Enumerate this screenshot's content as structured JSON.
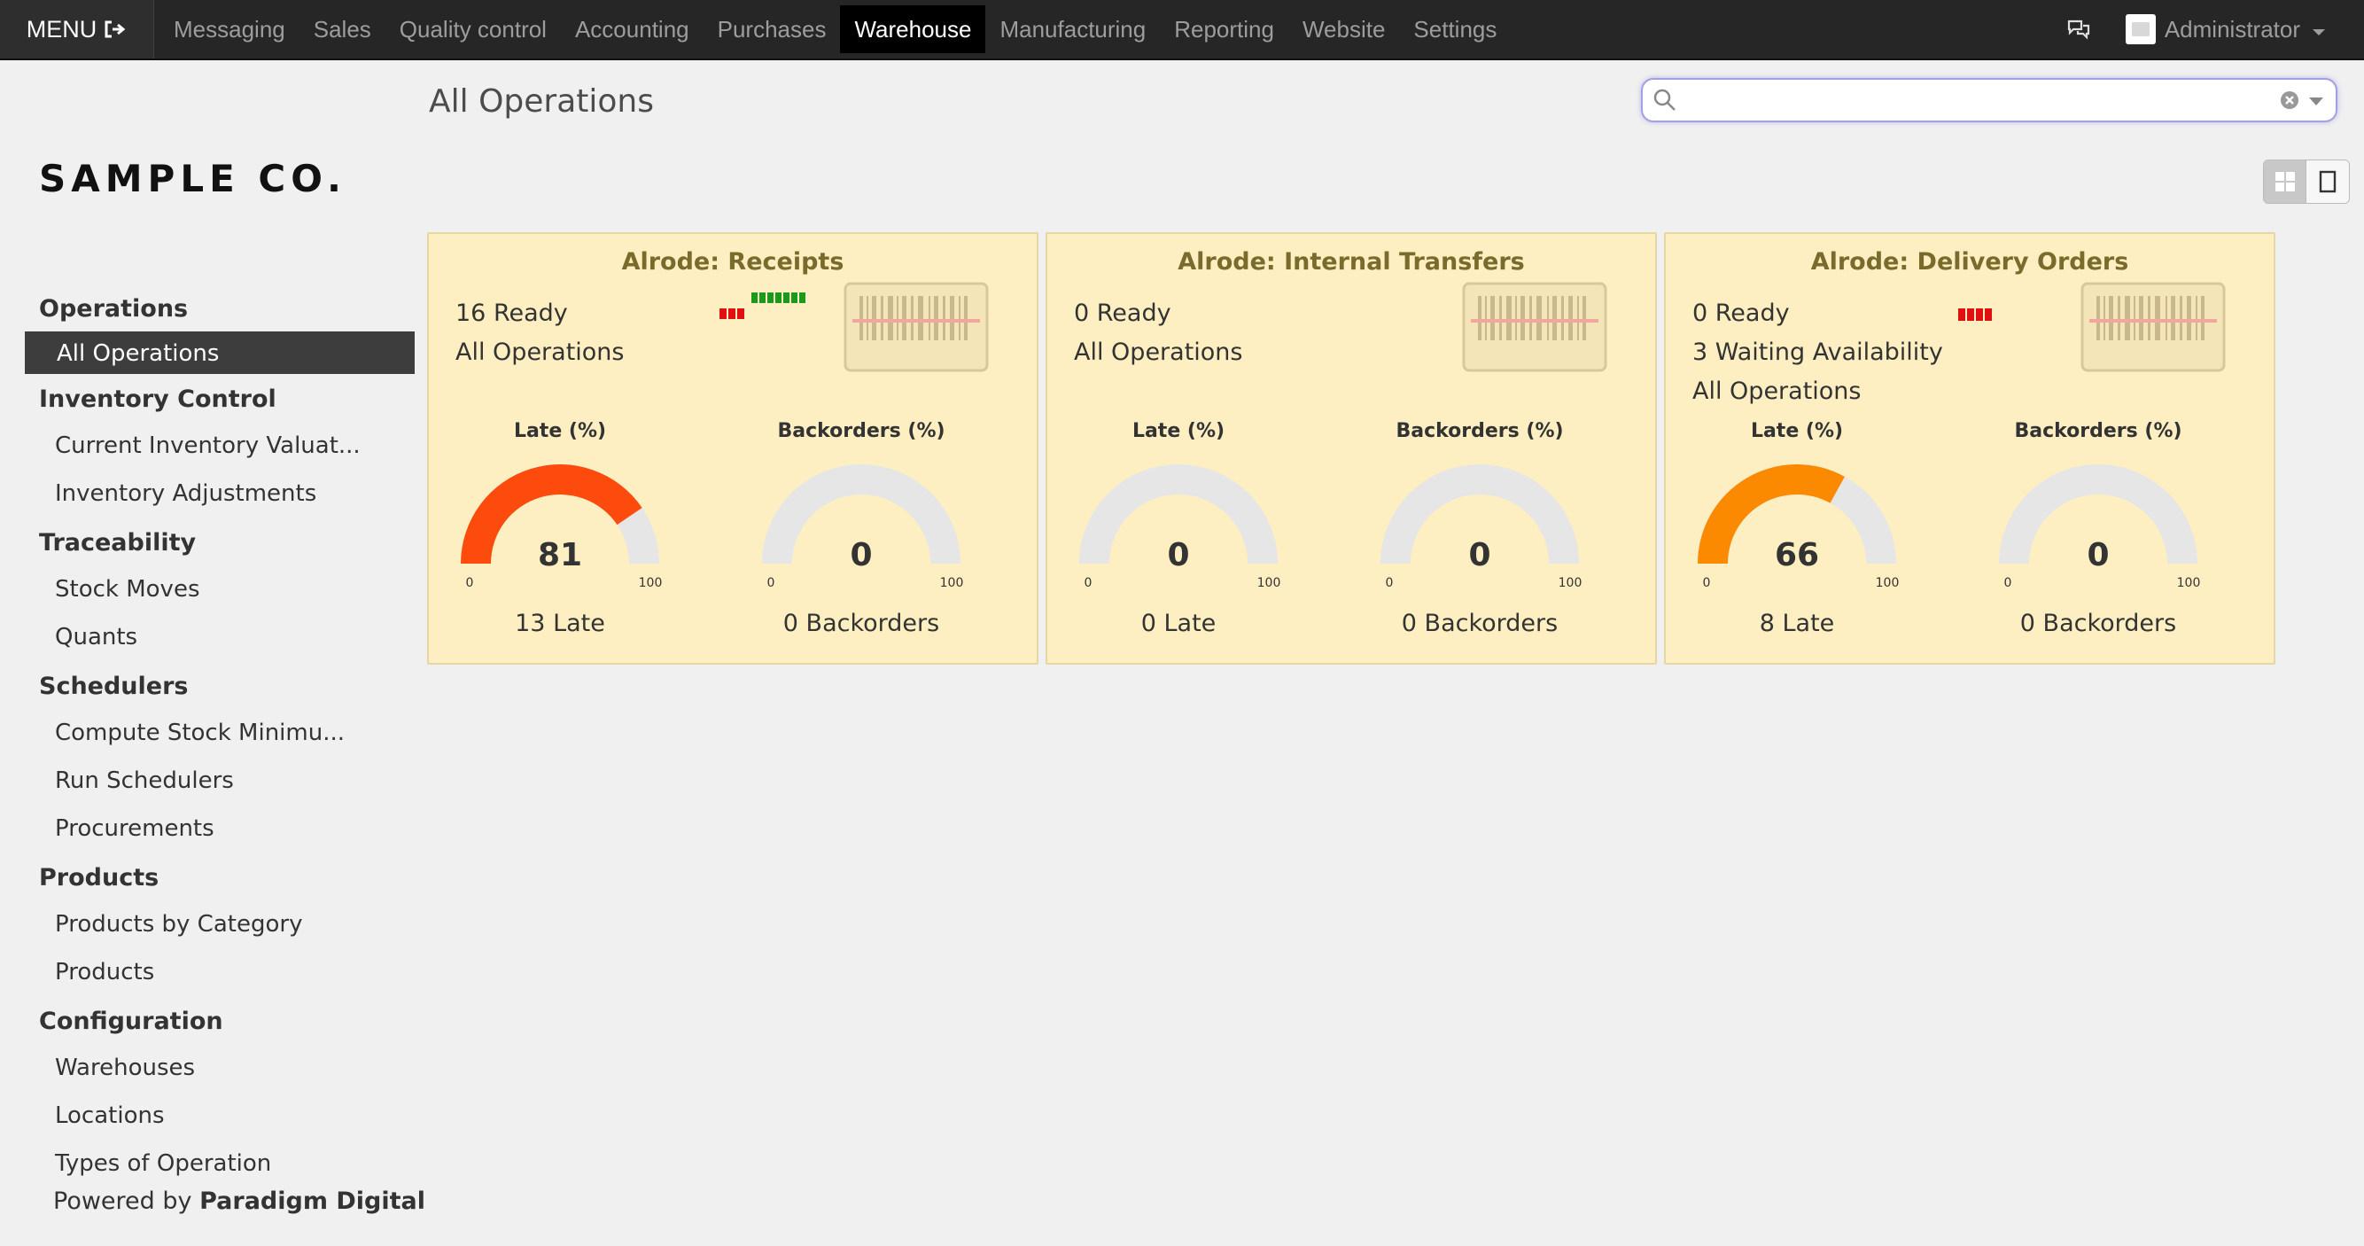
{
  "topbar": {
    "menu_label": "MENU",
    "apps": [
      "Messaging",
      "Sales",
      "Quality control",
      "Accounting",
      "Purchases",
      "Warehouse",
      "Manufacturing",
      "Reporting",
      "Website",
      "Settings"
    ],
    "active_app": "Warehouse",
    "user": "Administrator"
  },
  "logo": {
    "text": "SAMPLE CO."
  },
  "sidebar": {
    "sections": [
      {
        "title": "Operations",
        "items": [
          "All Operations"
        ]
      },
      {
        "title": "Inventory Control",
        "items": [
          "Current Inventory Valuat...",
          "Inventory Adjustments"
        ]
      },
      {
        "title": "Traceability",
        "items": [
          "Stock Moves",
          "Quants"
        ]
      },
      {
        "title": "Schedulers",
        "items": [
          "Compute Stock Minimu...",
          "Run Schedulers",
          "Procurements"
        ]
      },
      {
        "title": "Products",
        "items": [
          "Products by Category",
          "Products"
        ]
      },
      {
        "title": "Configuration",
        "items": [
          "Warehouses",
          "Locations",
          "Types of Operation"
        ]
      }
    ],
    "active_item": "All Operations",
    "powered_prefix": "Powered by",
    "powered_brand": "Paradigm Digital"
  },
  "header": {
    "title": "All Operations"
  },
  "search": {
    "value": "",
    "placeholder": ""
  },
  "colors": {
    "late_red": "#fc4b0d",
    "late_orange": "#fc8a00",
    "gauge_empty": "#e6e6e6",
    "card_bg": "#fdefc1",
    "bar_green": "#1a9a1a",
    "bar_red": "#e01010"
  },
  "cards": [
    {
      "title": "Alrode: Receipts",
      "stats": [
        "16 Ready",
        "All Operations"
      ],
      "gauges": [
        {
          "label": "Late (%)",
          "value": 81,
          "min": "0",
          "max": "100",
          "color": "#fc4b0d",
          "sub": "13 Late"
        },
        {
          "label": "Backorders (%)",
          "value": 0,
          "min": "0",
          "max": "100",
          "color": "#e6e6e6",
          "sub": "0 Backorders"
        }
      ]
    },
    {
      "title": "Alrode: Internal Transfers",
      "stats": [
        "0 Ready",
        "All Operations"
      ],
      "gauges": [
        {
          "label": "Late (%)",
          "value": 0,
          "min": "0",
          "max": "100",
          "color": "#e6e6e6",
          "sub": "0 Late"
        },
        {
          "label": "Backorders (%)",
          "value": 0,
          "min": "0",
          "max": "100",
          "color": "#e6e6e6",
          "sub": "0 Backorders"
        }
      ]
    },
    {
      "title": "Alrode: Delivery Orders",
      "stats": [
        "0 Ready",
        "3 Waiting Availability",
        "All Operations"
      ],
      "gauges": [
        {
          "label": "Late (%)",
          "value": 66,
          "min": "0",
          "max": "100",
          "color": "#fc8a00",
          "sub": "8 Late"
        },
        {
          "label": "Backorders (%)",
          "value": 0,
          "min": "0",
          "max": "100",
          "color": "#e6e6e6",
          "sub": "0 Backorders"
        }
      ]
    }
  ]
}
